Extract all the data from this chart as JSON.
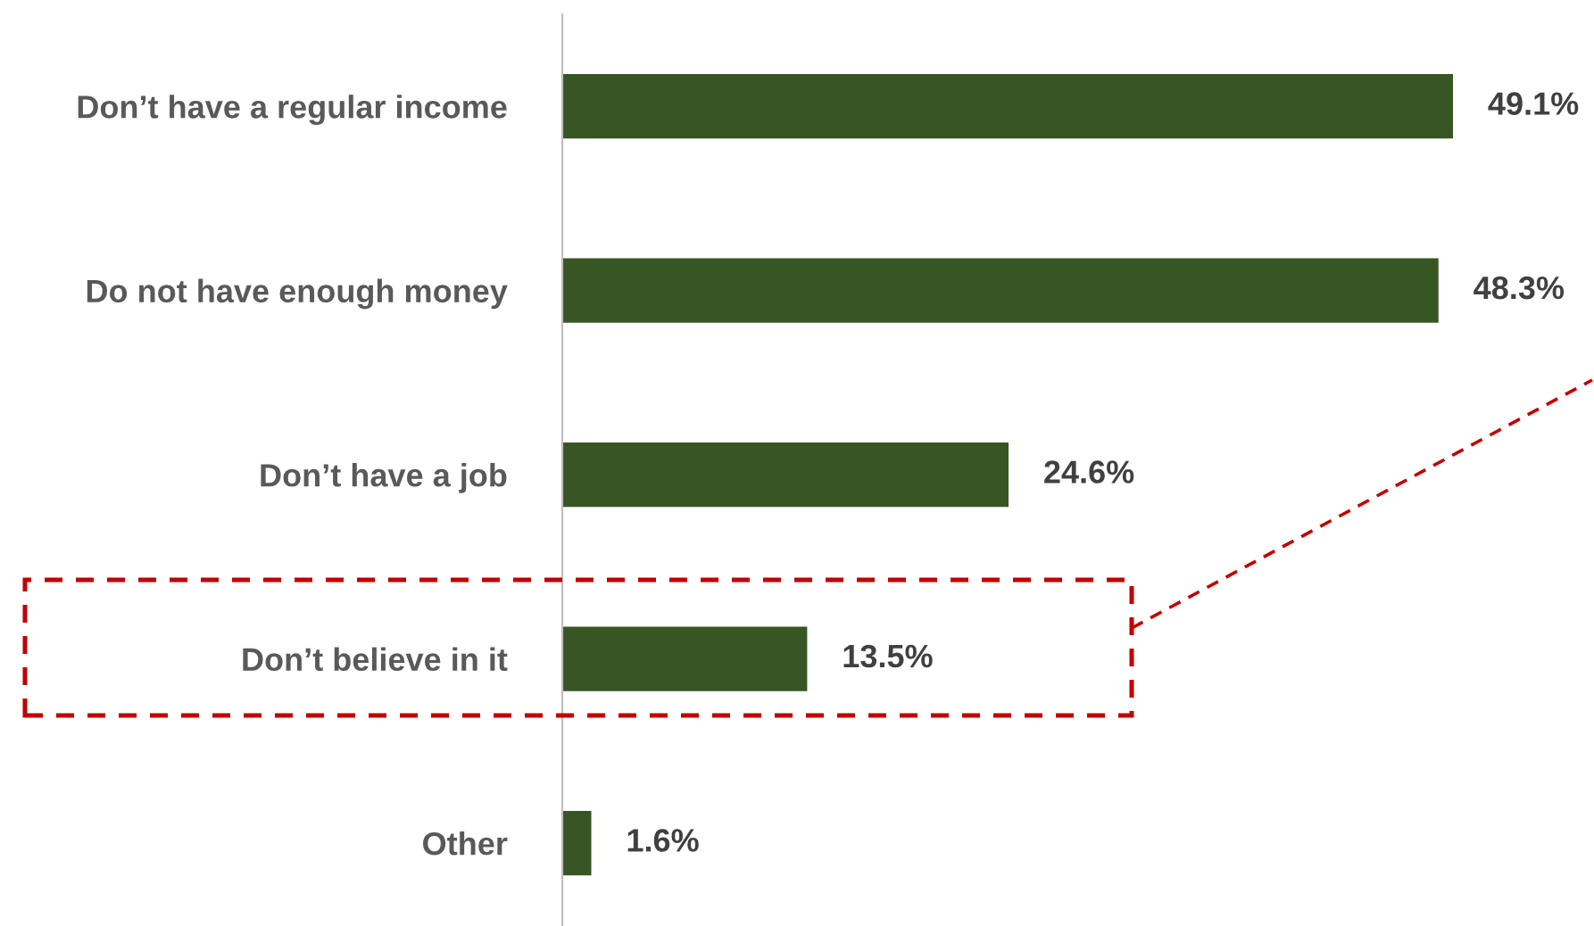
{
  "chart_data": {
    "type": "bar",
    "orientation": "horizontal",
    "categories": [
      "Don’t have a regular income",
      "Do not have enough money",
      "Don’t have a job",
      "Don’t believe in it",
      "Other"
    ],
    "values": [
      49.1,
      48.3,
      24.6,
      13.5,
      1.6
    ],
    "value_labels": [
      "49.1%",
      "48.3%",
      "24.6%",
      "13.5%",
      "1.6%"
    ],
    "color": "#375623",
    "grid": false,
    "legend": false
  }
}
